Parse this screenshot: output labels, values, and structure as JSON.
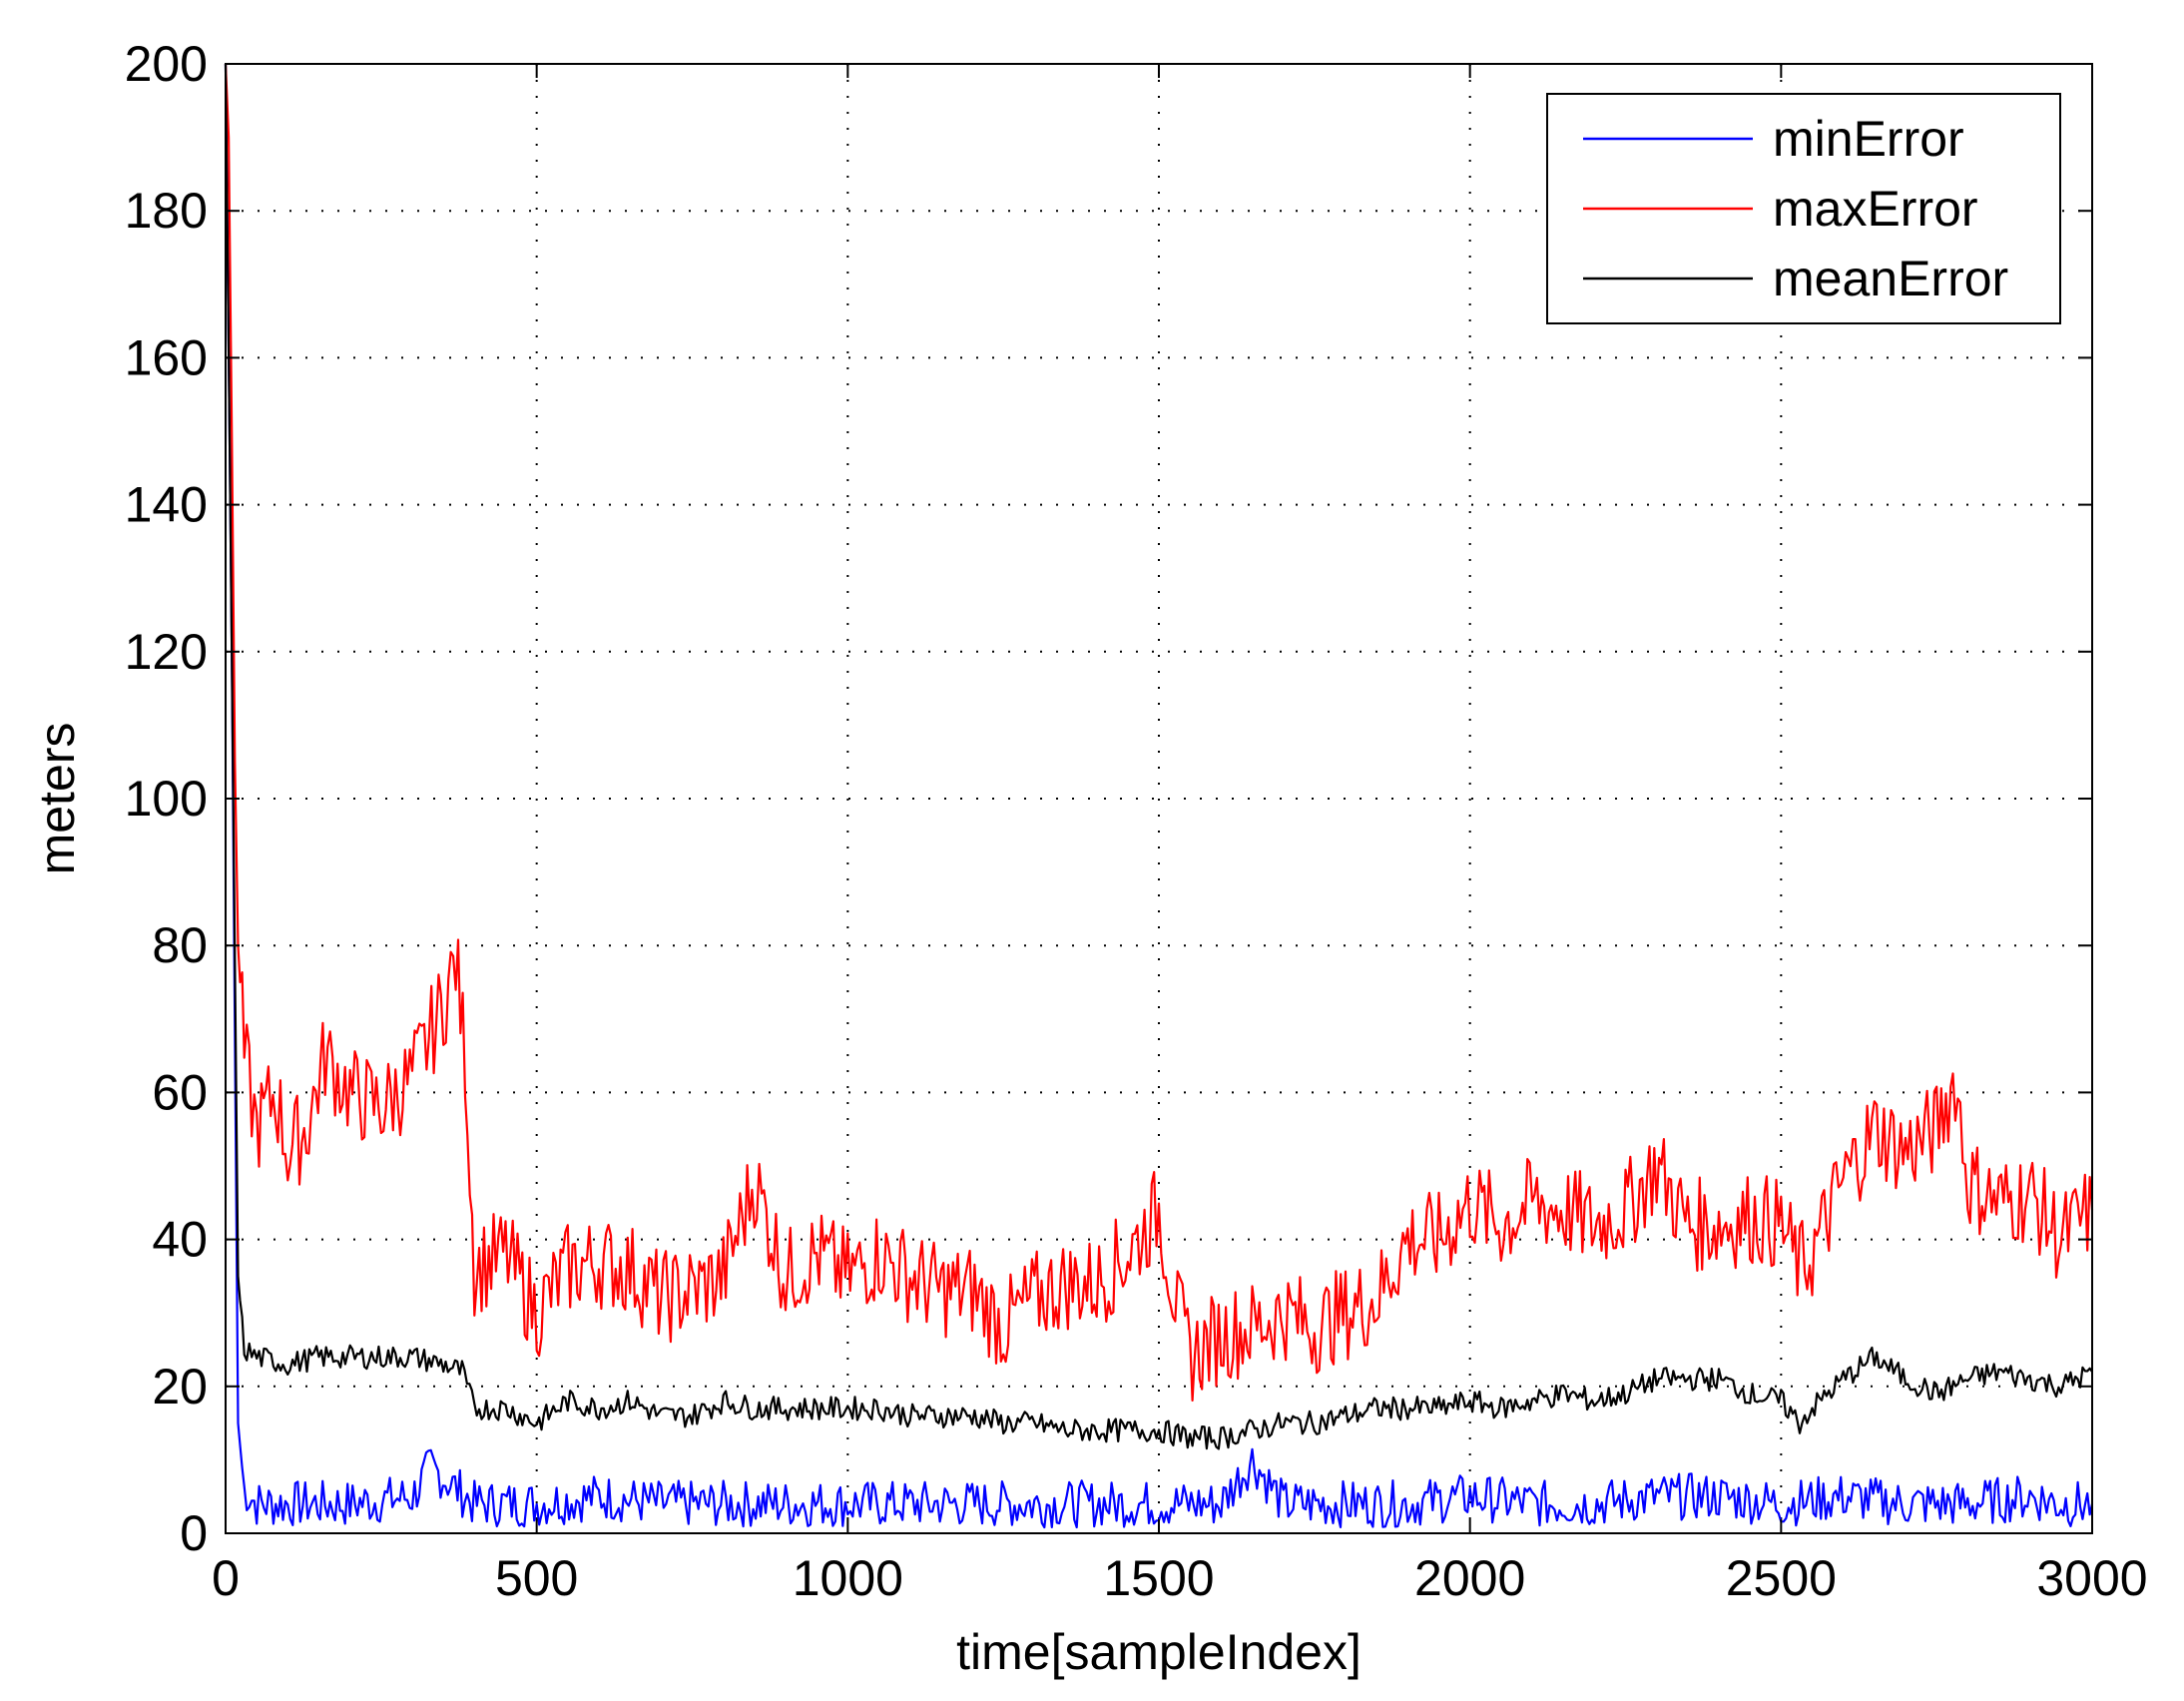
{
  "chart_data": {
    "type": "line",
    "title": "",
    "xlabel": "time[sampleIndex]",
    "ylabel": "meters",
    "xlim": [
      0,
      3000
    ],
    "ylim": [
      0,
      200
    ],
    "xticks": [
      0,
      500,
      1000,
      1500,
      2000,
      2500,
      3000
    ],
    "xtick_labels": [
      "0",
      "500",
      "1000",
      "1500",
      "2000",
      "2500",
      "3000"
    ],
    "yticks": [
      0,
      20,
      40,
      60,
      80,
      100,
      120,
      140,
      160,
      180,
      200
    ],
    "ytick_labels": [
      "0",
      "20",
      "40",
      "60",
      "80",
      "100",
      "120",
      "140",
      "160",
      "180",
      "200"
    ],
    "grid": true,
    "legend_position": "top-right",
    "series": [
      {
        "name": "minError",
        "color": "#0000ff",
        "x": [
          0,
          10,
          20,
          30,
          50,
          100,
          200,
          300,
          330,
          400,
          500,
          600,
          700,
          800,
          900,
          1000,
          1100,
          1200,
          1300,
          1400,
          1500,
          1600,
          1650,
          1700,
          1800,
          1900,
          2000,
          2100,
          2200,
          2300,
          2400,
          2500,
          2600,
          2700,
          2800,
          2900,
          2950,
          3000
        ],
        "y": [
          200,
          120,
          15,
          6,
          4,
          4,
          4,
          5,
          9,
          4,
          4,
          5,
          4,
          4,
          4,
          4,
          4,
          4,
          4,
          4,
          4,
          4,
          10,
          4,
          4,
          4,
          5,
          4,
          4,
          5,
          5,
          4,
          5,
          4,
          4,
          5,
          4,
          4
        ]
      },
      {
        "name": "maxError",
        "color": "#ff0000",
        "x": [
          0,
          5,
          10,
          15,
          20,
          30,
          50,
          80,
          100,
          130,
          160,
          200,
          250,
          300,
          350,
          370,
          385,
          400,
          450,
          500,
          550,
          600,
          650,
          700,
          750,
          800,
          850,
          900,
          950,
          1000,
          1050,
          1100,
          1150,
          1200,
          1250,
          1300,
          1350,
          1400,
          1450,
          1500,
          1530,
          1550,
          1600,
          1650,
          1700,
          1750,
          1800,
          1850,
          1900,
          1950,
          2000,
          2050,
          2100,
          2150,
          2200,
          2250,
          2300,
          2350,
          2400,
          2450,
          2500,
          2530,
          2550,
          2600,
          2650,
          2700,
          2750,
          2780,
          2800,
          2850,
          2900,
          2950,
          3000
        ],
        "y": [
          200,
          190,
          150,
          105,
          80,
          65,
          55,
          60,
          52,
          55,
          65,
          60,
          58,
          62,
          72,
          78,
          65,
          36,
          38,
          30,
          36,
          37,
          36,
          32,
          33,
          35,
          48,
          35,
          38,
          35,
          38,
          35,
          33,
          33,
          28,
          32,
          34,
          34,
          38,
          44,
          30,
          24,
          27,
          28,
          30,
          28,
          30,
          32,
          40,
          40,
          45,
          42,
          45,
          44,
          42,
          44,
          50,
          42,
          42,
          43,
          42,
          36,
          38,
          48,
          55,
          52,
          55,
          62,
          48,
          45,
          46,
          40,
          44
        ]
      },
      {
        "name": "meanError",
        "color": "#000000",
        "x": [
          0,
          10,
          20,
          30,
          50,
          100,
          150,
          200,
          250,
          300,
          350,
          380,
          400,
          450,
          500,
          550,
          600,
          650,
          700,
          750,
          800,
          850,
          900,
          950,
          1000,
          1050,
          1100,
          1150,
          1200,
          1250,
          1300,
          1350,
          1400,
          1450,
          1500,
          1550,
          1600,
          1650,
          1700,
          1750,
          1800,
          1850,
          1900,
          1950,
          2000,
          2050,
          2100,
          2150,
          2200,
          2250,
          2300,
          2350,
          2400,
          2450,
          2500,
          2530,
          2550,
          2600,
          2650,
          2700,
          2750,
          2800,
          2850,
          2900,
          2950,
          3000
        ],
        "y": [
          200,
          120,
          35,
          25,
          24,
          23,
          24,
          24,
          24,
          24,
          23,
          22,
          17,
          17,
          15,
          18,
          17,
          18,
          16,
          16,
          18,
          17,
          17,
          17,
          17,
          17,
          16,
          16,
          16,
          15,
          15,
          14,
          14,
          14,
          14,
          13,
          13,
          14,
          15,
          15,
          16,
          17,
          17,
          17,
          18,
          17,
          18,
          19,
          18,
          19,
          21,
          21,
          21,
          19,
          18,
          15,
          17,
          21,
          24,
          21,
          19,
          21,
          22,
          21,
          20,
          22
        ]
      }
    ]
  }
}
